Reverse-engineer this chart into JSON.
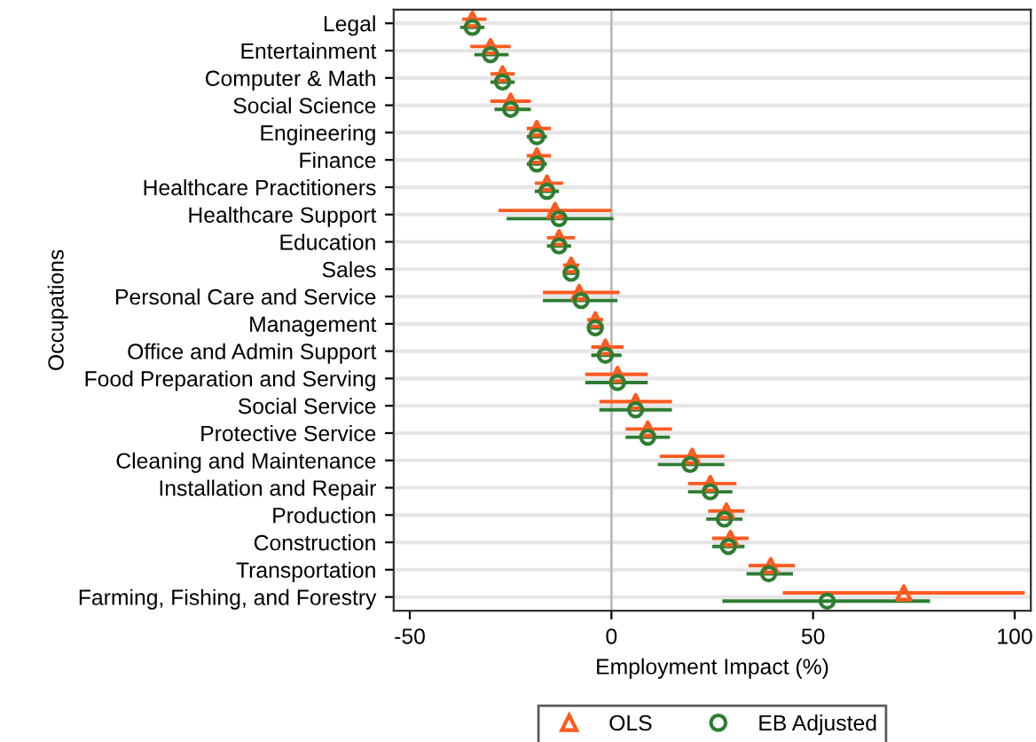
{
  "chart_data": {
    "type": "scatter",
    "orientation": "horizontal",
    "xlabel": "Employment Impact (%)",
    "ylabel": "Occupations",
    "categories": [
      "Legal",
      "Entertainment",
      "Computer & Math",
      "Social Science",
      "Engineering",
      "Finance",
      "Healthcare Practitioners",
      "Healthcare Support",
      "Education",
      "Sales",
      "Personal Care and Service",
      "Management",
      "Office and Admin Support",
      "Food Preparation and Serving",
      "Social Service",
      "Protective Service",
      "Cleaning and Maintenance",
      "Installation and Repair",
      "Production",
      "Construction",
      "Transportation",
      "Farming, Fishing, and Forestry"
    ],
    "series": [
      {
        "name": "OLS",
        "color": "#ff5a1f",
        "marker": "triangle",
        "values": [
          -34.5,
          -30,
          -27,
          -25,
          -18.5,
          -18.5,
          -16,
          -14,
          -13,
          -10,
          -8,
          -4,
          -1.5,
          1.5,
          6,
          9,
          20,
          24.5,
          28.5,
          29.5,
          39.5,
          72.5
        ],
        "errors": [
          [
            -37,
            -31
          ],
          [
            -35,
            -25
          ],
          [
            -30,
            -24
          ],
          [
            -30,
            -20
          ],
          [
            -21,
            -15
          ],
          [
            -21,
            -15
          ],
          [
            -19,
            -12
          ],
          [
            -28,
            0
          ],
          [
            -16,
            -9
          ],
          [
            -12,
            -8
          ],
          [
            -17,
            2
          ],
          [
            -6,
            -2
          ],
          [
            -5,
            3
          ],
          [
            -6.5,
            9
          ],
          [
            -3,
            15
          ],
          [
            3.5,
            15
          ],
          [
            12,
            28
          ],
          [
            19,
            31
          ],
          [
            24,
            33
          ],
          [
            25,
            34
          ],
          [
            34,
            45.5
          ],
          [
            42.5,
            102.5
          ]
        ]
      },
      {
        "name": "EB Adjusted",
        "color": "#2e7d32",
        "marker": "circle",
        "values": [
          -34.5,
          -30,
          -27,
          -25,
          -18.5,
          -18.5,
          -16,
          -13,
          -13,
          -10,
          -7.5,
          -4,
          -1.5,
          1.5,
          6,
          9,
          19.5,
          24.5,
          28,
          29,
          39,
          53.5
        ],
        "errors": [
          [
            -37.5,
            -31.5
          ],
          [
            -34,
            -25.5
          ],
          [
            -30,
            -24
          ],
          [
            -29,
            -20
          ],
          [
            -21,
            -16
          ],
          [
            -21,
            -16
          ],
          [
            -19,
            -13
          ],
          [
            -26,
            0.5
          ],
          [
            -16,
            -10
          ],
          [
            -12,
            -8.5
          ],
          [
            -17,
            1.5
          ],
          [
            -6,
            -2
          ],
          [
            -5,
            2.5
          ],
          [
            -6.5,
            9
          ],
          [
            -3,
            15
          ],
          [
            3.5,
            14.5
          ],
          [
            11.5,
            28
          ],
          [
            19,
            30
          ],
          [
            23.5,
            32.5
          ],
          [
            25,
            33
          ],
          [
            33.5,
            45
          ],
          [
            27.5,
            79
          ]
        ]
      }
    ],
    "xlim": [
      -54,
      104
    ],
    "xticks": [
      -50,
      0,
      50,
      100
    ],
    "grid": "y",
    "legend": "bottom",
    "ref_lines": [
      {
        "axis": "x",
        "value": 0,
        "color": "#bbbbbb"
      }
    ]
  }
}
